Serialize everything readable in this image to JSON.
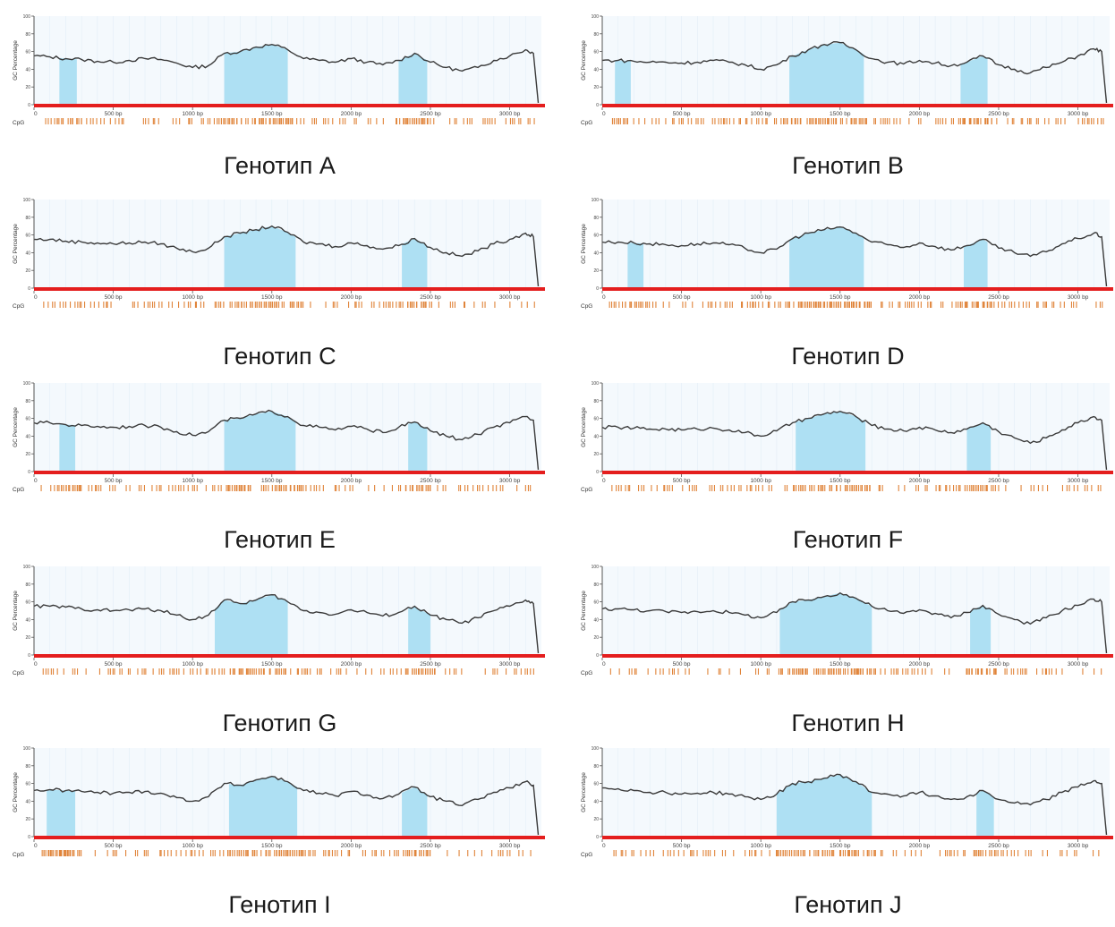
{
  "figure": {
    "ylabel": "GC Percentage",
    "cpg_label": "CpG",
    "colors": {
      "line": "#3a3a3a",
      "island": "#aee0f3",
      "baseline": "#e41e1e",
      "cpg": "#e0843a",
      "plot_bg": "#f4f9fd",
      "grid": "#e2eef7"
    }
  },
  "chart_data": [
    {
      "type": "area",
      "title": "Генотип A",
      "xlim": [
        0,
        3200
      ],
      "ylim": [
        0,
        100
      ],
      "x_ticks": [
        0,
        500,
        1000,
        1500,
        2000,
        2500,
        3000
      ],
      "x_tick_labels": [
        "0",
        "500 bp",
        "1000 bp",
        "1500 bp",
        "2000 bp",
        "2500 bp",
        "3000 bp"
      ],
      "y_ticks": [
        0,
        20,
        40,
        60,
        80,
        100
      ],
      "islands": [
        [
          160,
          270
        ],
        [
          1200,
          1600
        ],
        [
          2300,
          2480
        ]
      ],
      "series": [
        {
          "x": [
            0,
            100,
            200,
            300,
            400,
            500,
            600,
            700,
            800,
            900,
            1000,
            1100,
            1200,
            1300,
            1400,
            1500,
            1600,
            1700,
            1800,
            1900,
            2000,
            2100,
            2200,
            2300,
            2400,
            2500,
            2600,
            2700,
            2800,
            2900,
            3000,
            3100,
            3150,
            3180
          ],
          "values": [
            55,
            54,
            52,
            51,
            49,
            48,
            50,
            52,
            51,
            47,
            42,
            44,
            58,
            60,
            65,
            68,
            62,
            52,
            50,
            48,
            52,
            48,
            45,
            50,
            58,
            48,
            42,
            38,
            42,
            50,
            55,
            62,
            58,
            2
          ]
        }
      ]
    },
    {
      "type": "area",
      "title": "Генотип B",
      "xlim": [
        0,
        3200
      ],
      "ylim": [
        0,
        100
      ],
      "x_ticks": [
        0,
        500,
        1000,
        1500,
        2000,
        2500,
        3000
      ],
      "x_tick_labels": [
        "0",
        "500 bp",
        "1000 bp",
        "1500 bp",
        "2000 bp",
        "2500 bp",
        "3000 bp"
      ],
      "y_ticks": [
        0,
        20,
        40,
        60,
        80,
        100
      ],
      "islands": [
        [
          80,
          180
        ],
        [
          1180,
          1650
        ],
        [
          2260,
          2430
        ]
      ],
      "series": [
        {
          "x": [
            0,
            100,
            200,
            300,
            400,
            500,
            600,
            700,
            800,
            900,
            1000,
            1100,
            1200,
            1300,
            1400,
            1500,
            1600,
            1700,
            1800,
            1900,
            2000,
            2100,
            2200,
            2300,
            2400,
            2500,
            2600,
            2700,
            2800,
            2900,
            3000,
            3100,
            3150,
            3180
          ],
          "values": [
            50,
            50,
            49,
            48,
            48,
            47,
            48,
            50,
            48,
            45,
            40,
            45,
            55,
            62,
            68,
            70,
            62,
            52,
            48,
            46,
            50,
            47,
            44,
            48,
            55,
            45,
            40,
            36,
            42,
            48,
            55,
            63,
            60,
            2
          ]
        }
      ]
    },
    {
      "type": "area",
      "title": "Генотип C",
      "xlim": [
        0,
        3200
      ],
      "ylim": [
        0,
        100
      ],
      "x_ticks": [
        0,
        500,
        1000,
        1500,
        2000,
        2500,
        3000
      ],
      "x_tick_labels": [
        "0",
        "500 bp",
        "1000 bp",
        "1500 bp",
        "2000 bp",
        "2500 bp",
        "3000 bp"
      ],
      "y_ticks": [
        0,
        20,
        40,
        60,
        80,
        100
      ],
      "islands": [
        [
          1200,
          1650
        ],
        [
          2320,
          2480
        ]
      ],
      "series": [
        {
          "x": [
            0,
            100,
            200,
            300,
            400,
            500,
            600,
            700,
            800,
            900,
            1000,
            1100,
            1200,
            1300,
            1400,
            1500,
            1600,
            1700,
            1800,
            1900,
            2000,
            2100,
            2200,
            2300,
            2400,
            2500,
            2600,
            2700,
            2800,
            2900,
            3000,
            3100,
            3150,
            3180
          ],
          "values": [
            55,
            55,
            53,
            52,
            51,
            50,
            51,
            52,
            50,
            45,
            41,
            45,
            58,
            62,
            66,
            70,
            63,
            52,
            50,
            47,
            51,
            48,
            44,
            48,
            56,
            46,
            40,
            36,
            42,
            50,
            55,
            62,
            58,
            2
          ]
        }
      ]
    },
    {
      "type": "area",
      "title": "Генотип D",
      "xlim": [
        0,
        3200
      ],
      "ylim": [
        0,
        100
      ],
      "x_ticks": [
        0,
        500,
        1000,
        1500,
        2000,
        2500,
        3000
      ],
      "x_tick_labels": [
        "0",
        "500 bp",
        "1000 bp",
        "1500 bp",
        "2000 bp",
        "2500 bp",
        "3000 bp"
      ],
      "y_ticks": [
        0,
        20,
        40,
        60,
        80,
        100
      ],
      "islands": [
        [
          160,
          260
        ],
        [
          1180,
          1650
        ],
        [
          2280,
          2430
        ]
      ],
      "series": [
        {
          "x": [
            0,
            100,
            200,
            300,
            400,
            500,
            600,
            700,
            800,
            900,
            1000,
            1100,
            1200,
            1300,
            1400,
            1500,
            1600,
            1700,
            1800,
            1900,
            2000,
            2100,
            2200,
            2300,
            2400,
            2500,
            2600,
            2700,
            2800,
            2900,
            3000,
            3100,
            3150,
            3180
          ],
          "values": [
            52,
            52,
            51,
            50,
            49,
            48,
            50,
            51,
            49,
            45,
            40,
            44,
            56,
            62,
            66,
            69,
            62,
            52,
            49,
            46,
            51,
            47,
            43,
            48,
            55,
            45,
            40,
            36,
            41,
            50,
            56,
            62,
            58,
            2
          ]
        }
      ]
    },
    {
      "type": "area",
      "title": "Генотип E",
      "xlim": [
        0,
        3200
      ],
      "ylim": [
        0,
        100
      ],
      "x_ticks": [
        0,
        500,
        1000,
        1500,
        2000,
        2500,
        3000
      ],
      "x_tick_labels": [
        "0",
        "500 bp",
        "1000 bp",
        "1500 bp",
        "2000 bp",
        "2500 bp",
        "3000 bp"
      ],
      "y_ticks": [
        0,
        20,
        40,
        60,
        80,
        100
      ],
      "islands": [
        [
          160,
          260
        ],
        [
          1200,
          1650
        ],
        [
          2360,
          2480
        ]
      ],
      "series": [
        {
          "x": [
            0,
            100,
            200,
            300,
            400,
            500,
            600,
            700,
            800,
            900,
            1000,
            1100,
            1200,
            1300,
            1400,
            1500,
            1600,
            1700,
            1800,
            1900,
            2000,
            2100,
            2200,
            2300,
            2400,
            2500,
            2600,
            2700,
            2800,
            2900,
            3000,
            3100,
            3150,
            3180
          ],
          "values": [
            55,
            55,
            53,
            52,
            51,
            50,
            51,
            52,
            50,
            45,
            41,
            45,
            58,
            60,
            65,
            68,
            62,
            52,
            50,
            47,
            51,
            48,
            44,
            50,
            56,
            46,
            40,
            36,
            42,
            50,
            55,
            62,
            58,
            2
          ]
        }
      ]
    },
    {
      "type": "area",
      "title": "Генотип F",
      "xlim": [
        0,
        3200
      ],
      "ylim": [
        0,
        100
      ],
      "x_ticks": [
        0,
        500,
        1000,
        1500,
        2000,
        2500,
        3000
      ],
      "x_tick_labels": [
        "0",
        "500 bp",
        "1000 bp",
        "1500 bp",
        "2000 bp",
        "2500 bp",
        "3000 bp"
      ],
      "y_ticks": [
        0,
        20,
        40,
        60,
        80,
        100
      ],
      "islands": [
        [
          1220,
          1660
        ],
        [
          2300,
          2450
        ]
      ],
      "series": [
        {
          "x": [
            0,
            100,
            200,
            300,
            400,
            500,
            600,
            700,
            800,
            900,
            1000,
            1100,
            1200,
            1300,
            1400,
            1500,
            1600,
            1700,
            1800,
            1900,
            2000,
            2100,
            2200,
            2300,
            2400,
            2500,
            2600,
            2700,
            2800,
            2900,
            3000,
            3100,
            3150,
            3180
          ],
          "values": [
            50,
            50,
            49,
            48,
            48,
            47,
            48,
            49,
            47,
            44,
            40,
            46,
            55,
            60,
            65,
            68,
            62,
            52,
            48,
            46,
            50,
            47,
            44,
            48,
            55,
            45,
            38,
            32,
            38,
            47,
            55,
            62,
            58,
            2
          ]
        }
      ]
    },
    {
      "type": "area",
      "title": "Генотип G",
      "xlim": [
        0,
        3200
      ],
      "ylim": [
        0,
        100
      ],
      "x_ticks": [
        0,
        500,
        1000,
        1500,
        2000,
        2500,
        3000
      ],
      "x_tick_labels": [
        "0",
        "500 bp",
        "1000 bp",
        "1500 bp",
        "2000 bp",
        "2500 bp",
        "3000 bp"
      ],
      "y_ticks": [
        0,
        20,
        40,
        60,
        80,
        100
      ],
      "islands": [
        [
          1140,
          1600
        ],
        [
          2360,
          2500
        ]
      ],
      "series": [
        {
          "x": [
            0,
            100,
            200,
            300,
            400,
            500,
            600,
            700,
            800,
            900,
            1000,
            1100,
            1200,
            1300,
            1400,
            1500,
            1600,
            1700,
            1800,
            1900,
            2000,
            2100,
            2200,
            2300,
            2400,
            2500,
            2600,
            2700,
            2800,
            2900,
            3000,
            3100,
            3150,
            3180
          ],
          "values": [
            55,
            55,
            54,
            52,
            51,
            50,
            51,
            52,
            50,
            45,
            40,
            45,
            62,
            58,
            62,
            68,
            60,
            50,
            48,
            46,
            51,
            48,
            44,
            48,
            55,
            45,
            40,
            36,
            42,
            50,
            55,
            62,
            58,
            2
          ]
        }
      ]
    },
    {
      "type": "area",
      "title": "Генотип H",
      "xlim": [
        0,
        3200
      ],
      "ylim": [
        0,
        100
      ],
      "x_ticks": [
        0,
        500,
        1000,
        1500,
        2000,
        2500,
        3000
      ],
      "x_tick_labels": [
        "0",
        "500 bp",
        "1000 bp",
        "1500 bp",
        "2000 bp",
        "2500 bp",
        "3000 bp"
      ],
      "y_ticks": [
        0,
        20,
        40,
        60,
        80,
        100
      ],
      "islands": [
        [
          1120,
          1700
        ],
        [
          2320,
          2450
        ]
      ],
      "series": [
        {
          "x": [
            0,
            100,
            200,
            300,
            400,
            500,
            600,
            700,
            800,
            900,
            1000,
            1100,
            1200,
            1300,
            1400,
            1500,
            1600,
            1700,
            1800,
            1900,
            2000,
            2100,
            2200,
            2300,
            2400,
            2500,
            2600,
            2700,
            2800,
            2900,
            3000,
            3100,
            3150,
            3180
          ],
          "values": [
            52,
            52,
            51,
            50,
            49,
            48,
            49,
            50,
            48,
            45,
            42,
            48,
            60,
            62,
            66,
            70,
            64,
            55,
            50,
            47,
            51,
            47,
            42,
            48,
            56,
            46,
            40,
            35,
            42,
            50,
            56,
            63,
            60,
            2
          ]
        }
      ]
    },
    {
      "type": "area",
      "title": "Генотип I",
      "xlim": [
        0,
        3200
      ],
      "ylim": [
        0,
        100
      ],
      "x_ticks": [
        0,
        500,
        1000,
        1500,
        2000,
        2500,
        3000
      ],
      "x_tick_labels": [
        "0",
        "500 bp",
        "1000 bp",
        "1500 bp",
        "2000 bp",
        "2500 bp",
        "3000 bp"
      ],
      "y_ticks": [
        0,
        20,
        40,
        60,
        80,
        100
      ],
      "islands": [
        [
          80,
          260
        ],
        [
          1230,
          1660
        ],
        [
          2320,
          2480
        ]
      ],
      "series": [
        {
          "x": [
            0,
            100,
            200,
            300,
            400,
            500,
            600,
            700,
            800,
            900,
            1000,
            1100,
            1200,
            1300,
            1400,
            1500,
            1600,
            1700,
            1800,
            1900,
            2000,
            2100,
            2200,
            2300,
            2400,
            2500,
            2600,
            2700,
            2800,
            2900,
            3000,
            3100,
            3150,
            3180
          ],
          "values": [
            52,
            53,
            52,
            51,
            50,
            49,
            50,
            51,
            49,
            44,
            40,
            45,
            60,
            58,
            64,
            68,
            62,
            52,
            49,
            46,
            51,
            47,
            43,
            48,
            56,
            45,
            40,
            35,
            42,
            50,
            55,
            62,
            58,
            2
          ]
        }
      ]
    },
    {
      "type": "area",
      "title": "Генотип J",
      "xlim": [
        0,
        3200
      ],
      "ylim": [
        0,
        100
      ],
      "x_ticks": [
        0,
        500,
        1000,
        1500,
        2000,
        2500,
        3000
      ],
      "x_tick_labels": [
        "0",
        "500 bp",
        "1000 bp",
        "1500 bp",
        "2000 bp",
        "2500 bp",
        "3000 bp"
      ],
      "y_ticks": [
        0,
        20,
        40,
        60,
        80,
        100
      ],
      "islands": [
        [
          1100,
          1700
        ],
        [
          2360,
          2470
        ]
      ],
      "series": [
        {
          "x": [
            0,
            100,
            200,
            300,
            400,
            500,
            600,
            700,
            800,
            900,
            1000,
            1100,
            1200,
            1300,
            1400,
            1500,
            1600,
            1700,
            1800,
            1900,
            2000,
            2100,
            2200,
            2300,
            2400,
            2500,
            2600,
            2700,
            2800,
            2900,
            3000,
            3100,
            3150,
            3180
          ],
          "values": [
            55,
            54,
            52,
            50,
            50,
            48,
            49,
            50,
            48,
            45,
            42,
            48,
            60,
            62,
            66,
            70,
            62,
            50,
            48,
            46,
            50,
            46,
            42,
            45,
            52,
            42,
            38,
            36,
            42,
            50,
            56,
            63,
            60,
            2
          ]
        }
      ]
    }
  ]
}
